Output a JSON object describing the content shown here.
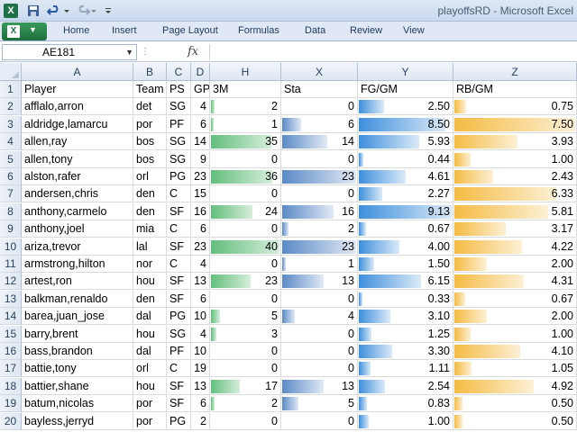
{
  "window": {
    "title": "playoffsRD - Microsoft Excel"
  },
  "toolbar": {
    "app_icon": "X",
    "save_icon": "save-icon",
    "undo_icon": "undo-icon",
    "redo_icon": "redo-icon"
  },
  "ribbon": {
    "file_label": "",
    "tabs": [
      "Home",
      "Insert",
      "Page Layout",
      "Formulas",
      "Data",
      "Review",
      "View"
    ]
  },
  "formula_bar": {
    "name_box": "AE181",
    "fx": "fx",
    "content": ""
  },
  "sheet": {
    "columns": [
      "A",
      "B",
      "C",
      "D",
      "H",
      "X",
      "Y",
      "Z"
    ],
    "rows": [
      [
        "Player",
        "Team",
        "PS",
        "GP",
        "3M",
        "Sta",
        "FG/GM",
        "RB/GM"
      ],
      [
        "afflalo,arron",
        "det",
        "SG",
        "4",
        "2",
        "0",
        "2.50",
        "0.75"
      ],
      [
        "aldridge,lamarcu",
        "por",
        "PF",
        "6",
        "1",
        "6",
        "8.50",
        "7.50"
      ],
      [
        "allen,ray",
        "bos",
        "SG",
        "14",
        "35",
        "14",
        "5.93",
        "3.93"
      ],
      [
        "allen,tony",
        "bos",
        "SG",
        "9",
        "0",
        "0",
        "0.44",
        "1.00"
      ],
      [
        "alston,rafer",
        "orl",
        "PG",
        "23",
        "36",
        "23",
        "4.61",
        "2.43"
      ],
      [
        "andersen,chris",
        "den",
        "C",
        "15",
        "0",
        "0",
        "2.27",
        "6.33"
      ],
      [
        "anthony,carmelo",
        "den",
        "SF",
        "16",
        "24",
        "16",
        "9.13",
        "5.81"
      ],
      [
        "anthony,joel",
        "mia",
        "C",
        "6",
        "0",
        "2",
        "0.67",
        "3.17"
      ],
      [
        "ariza,trevor",
        "lal",
        "SF",
        "23",
        "40",
        "23",
        "4.00",
        "4.22"
      ],
      [
        "armstrong,hilton",
        "nor",
        "C",
        "4",
        "0",
        "1",
        "1.50",
        "2.00"
      ],
      [
        "artest,ron",
        "hou",
        "SF",
        "13",
        "23",
        "13",
        "6.15",
        "4.31"
      ],
      [
        "balkman,renaldo",
        "den",
        "SF",
        "6",
        "0",
        "0",
        "0.33",
        "0.67"
      ],
      [
        "barea,juan_jose",
        "dal",
        "PG",
        "10",
        "5",
        "4",
        "3.10",
        "2.00"
      ],
      [
        "barry,brent",
        "hou",
        "SG",
        "4",
        "3",
        "0",
        "1.25",
        "1.00"
      ],
      [
        "bass,brandon",
        "dal",
        "PF",
        "10",
        "0",
        "0",
        "3.30",
        "4.10"
      ],
      [
        "battie,tony",
        "orl",
        "C",
        "19",
        "0",
        "0",
        "1.11",
        "1.05"
      ],
      [
        "battier,shane",
        "hou",
        "SF",
        "13",
        "17",
        "13",
        "2.54",
        "4.92"
      ],
      [
        "batum,nicolas",
        "por",
        "SF",
        "6",
        "2",
        "5",
        "0.83",
        "0.50"
      ],
      [
        "bayless,jerryd",
        "por",
        "PG",
        "2",
        "0",
        "0",
        "1.00",
        "0.50"
      ]
    ],
    "databars": {
      "H": {
        "color": "green",
        "max": 40
      },
      "X": {
        "color": "blue",
        "max": 23
      },
      "Y": {
        "color": "blue2",
        "max": 9.13
      },
      "Z": {
        "color": "gold",
        "max": 7.5
      }
    }
  }
}
